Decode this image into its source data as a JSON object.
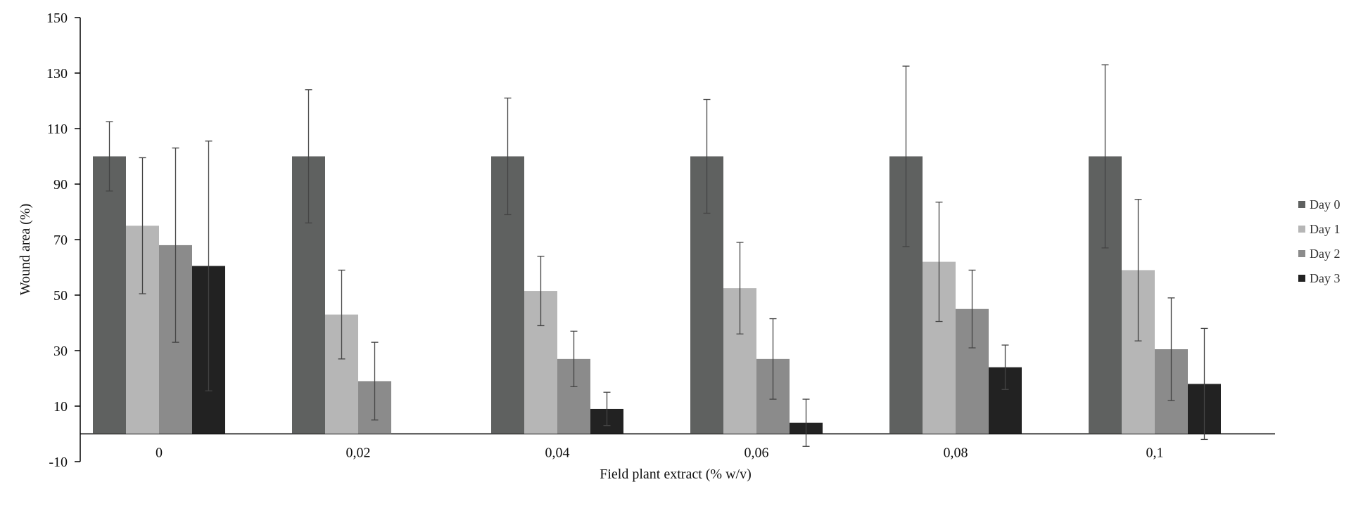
{
  "chart_data": {
    "type": "bar",
    "xlabel": "Field plant extract (% w/v)",
    "ylabel": "Wound area (%)",
    "ylim": [
      -10,
      150
    ],
    "yticks": [
      -10,
      10,
      30,
      50,
      70,
      90,
      110,
      130,
      150
    ],
    "categories": [
      "0",
      "0,02",
      "0,04",
      "0,06",
      "0,08",
      "0,1"
    ],
    "legend_position": "right",
    "grid": false,
    "series": [
      {
        "name": "Day 0",
        "color": "#5f6160",
        "values": [
          100,
          100,
          100,
          100,
          100,
          100
        ],
        "error": [
          12.5,
          24,
          21,
          20.5,
          32.5,
          33
        ]
      },
      {
        "name": "Day 1",
        "color": "#b6b6b6",
        "values": [
          75,
          43,
          51.5,
          52.5,
          62,
          59
        ],
        "error": [
          24.5,
          16,
          12.5,
          16.5,
          21.5,
          25.5
        ]
      },
      {
        "name": "Day 2",
        "color": "#8b8b8b",
        "values": [
          68,
          19,
          27,
          27,
          45,
          30.5
        ],
        "error": [
          35,
          14,
          10,
          14.5,
          14,
          18.5
        ]
      },
      {
        "name": "Day 3",
        "color": "#222222",
        "values": [
          60.5,
          0,
          9,
          4,
          24,
          18
        ],
        "error": [
          45,
          0,
          6,
          8.5,
          8,
          20
        ]
      }
    ]
  }
}
